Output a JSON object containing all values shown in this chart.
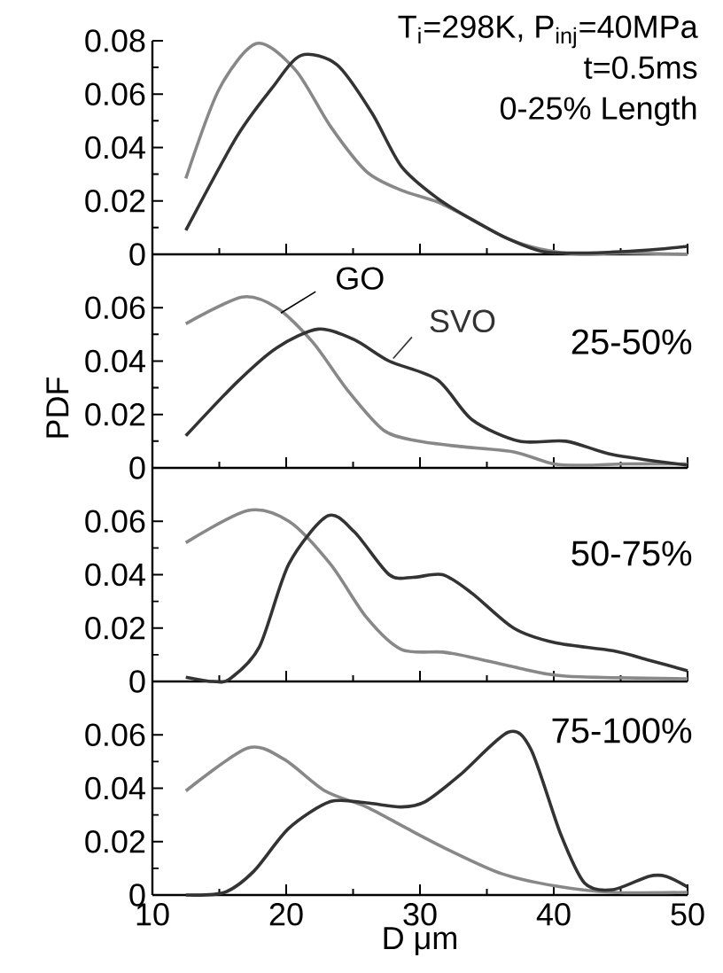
{
  "chart_data": [
    {
      "type": "line",
      "xlim": [
        10,
        50
      ],
      "xticks": [
        10,
        20,
        30,
        40,
        50
      ],
      "ylim": [
        0,
        0.08
      ],
      "yticks": [
        0,
        0.02,
        0.04,
        0.06,
        0.08
      ],
      "tick_labels": "y",
      "annotations": [
        "T$_{i}$=298K, P$_{inj}$=40MPa",
        "t=0.5ms",
        "0-25% Length"
      ],
      "series": [
        {
          "color": "#888888",
          "x": [
            12.5,
            15,
            17.8,
            20.7,
            23.3,
            26,
            28.6,
            31.3,
            33.9,
            36.5,
            39,
            42,
            45,
            50
          ],
          "values": [
            0.0284,
            0.062,
            0.079,
            0.069,
            0.048,
            0.031,
            0.024,
            0.0196,
            0.013,
            0.006,
            0.002,
            0,
            0.0005,
            0
          ]
        },
        {
          "color": "#333333",
          "x": [
            12.5,
            16.3,
            18.9,
            21.1,
            23.8,
            26.4,
            28.6,
            31.3,
            33.9,
            36.5,
            39.2,
            42,
            45,
            48,
            50
          ],
          "values": [
            0.009,
            0.044,
            0.062,
            0.0745,
            0.071,
            0.053,
            0.033,
            0.021,
            0.013,
            0.006,
            0.001,
            0.0005,
            0.001,
            0.002,
            0.003
          ]
        }
      ]
    },
    {
      "type": "line",
      "xlim": [
        10,
        50
      ],
      "xticks": [
        10,
        20,
        30,
        40,
        50
      ],
      "ylim": [
        0,
        0.08
      ],
      "yticks": [
        0,
        0.02,
        0.04,
        0.06
      ],
      "tick_labels": "y",
      "ylabel": "PDF",
      "annotations": [
        "25-50%"
      ],
      "series": [
        {
          "name": "GO",
          "color": "#888888",
          "x": [
            12.5,
            16.7,
            19.3,
            22,
            24.6,
            27.3,
            29.9,
            33,
            37,
            40,
            42.7,
            45.4,
            50
          ],
          "values": [
            0.054,
            0.064,
            0.06,
            0.047,
            0.029,
            0.014,
            0.01,
            0.008,
            0.006,
            0.0015,
            0.001,
            0.0015,
            0.0015
          ]
        },
        {
          "name": "SVO",
          "color": "#333333",
          "x": [
            12.5,
            16.3,
            19.3,
            22.4,
            25.1,
            27.7,
            31.3,
            33.9,
            37.4,
            40.9,
            44.4,
            50
          ],
          "values": [
            0.012,
            0.032,
            0.045,
            0.052,
            0.048,
            0.04,
            0.033,
            0.018,
            0.01,
            0.01,
            0.005,
            0.001
          ]
        }
      ]
    },
    {
      "type": "line",
      "xlim": [
        10,
        50
      ],
      "xticks": [
        10,
        20,
        30,
        40,
        50
      ],
      "ylim": [
        0,
        0.08
      ],
      "yticks": [
        0,
        0.02,
        0.04,
        0.06
      ],
      "tick_labels": "y",
      "annotations": [
        "50-75%"
      ],
      "series": [
        {
          "color": "#888888",
          "x": [
            12.5,
            17.1,
            20.2,
            23.3,
            26,
            28.6,
            31.7,
            33.9,
            37.4,
            40.9,
            50
          ],
          "values": [
            0.052,
            0.064,
            0.06,
            0.044,
            0.024,
            0.012,
            0.011,
            0.009,
            0.005,
            0.002,
            0.001
          ]
        },
        {
          "color": "#333333",
          "x": [
            12.5,
            14.5,
            15.8,
            18,
            20.2,
            23.1,
            25.1,
            27.7,
            29.5,
            31.7,
            33.9,
            37,
            40.1,
            44.4,
            47.1,
            50
          ],
          "values": [
            0.0016,
            0,
            0.001,
            0.013,
            0.044,
            0.062,
            0.056,
            0.04,
            0.039,
            0.04,
            0.033,
            0.02,
            0.0145,
            0.0115,
            0.008,
            0.004
          ]
        }
      ]
    },
    {
      "type": "line",
      "xlim": [
        10,
        50
      ],
      "xticks": [
        10,
        20,
        30,
        40,
        50
      ],
      "ylim": [
        0,
        0.08
      ],
      "yticks": [
        0,
        0.02,
        0.04,
        0.06
      ],
      "xlabel": "D  μm",
      "annotations": [
        "75-100%"
      ],
      "series": [
        {
          "color": "#888888",
          "x": [
            12.5,
            17.1,
            19.8,
            22.9,
            26,
            29,
            32.1,
            36.1,
            40.1,
            44.4,
            50
          ],
          "values": [
            0.039,
            0.055,
            0.051,
            0.039,
            0.033,
            0.025,
            0.017,
            0.008,
            0.0034,
            0.001,
            0.001
          ]
        },
        {
          "color": "#333333",
          "x": [
            12.5,
            15.4,
            17.6,
            20.2,
            23.3,
            26,
            28.6,
            30.4,
            33,
            36.6,
            38.3,
            40.5,
            42.3,
            44.4,
            47.1,
            48.4,
            50
          ],
          "values": [
            0,
            0.001,
            0.009,
            0.025,
            0.035,
            0.0345,
            0.033,
            0.035,
            0.045,
            0.061,
            0.0545,
            0.023,
            0.0045,
            0.002,
            0.007,
            0.007,
            0.003
          ]
        }
      ]
    }
  ]
}
